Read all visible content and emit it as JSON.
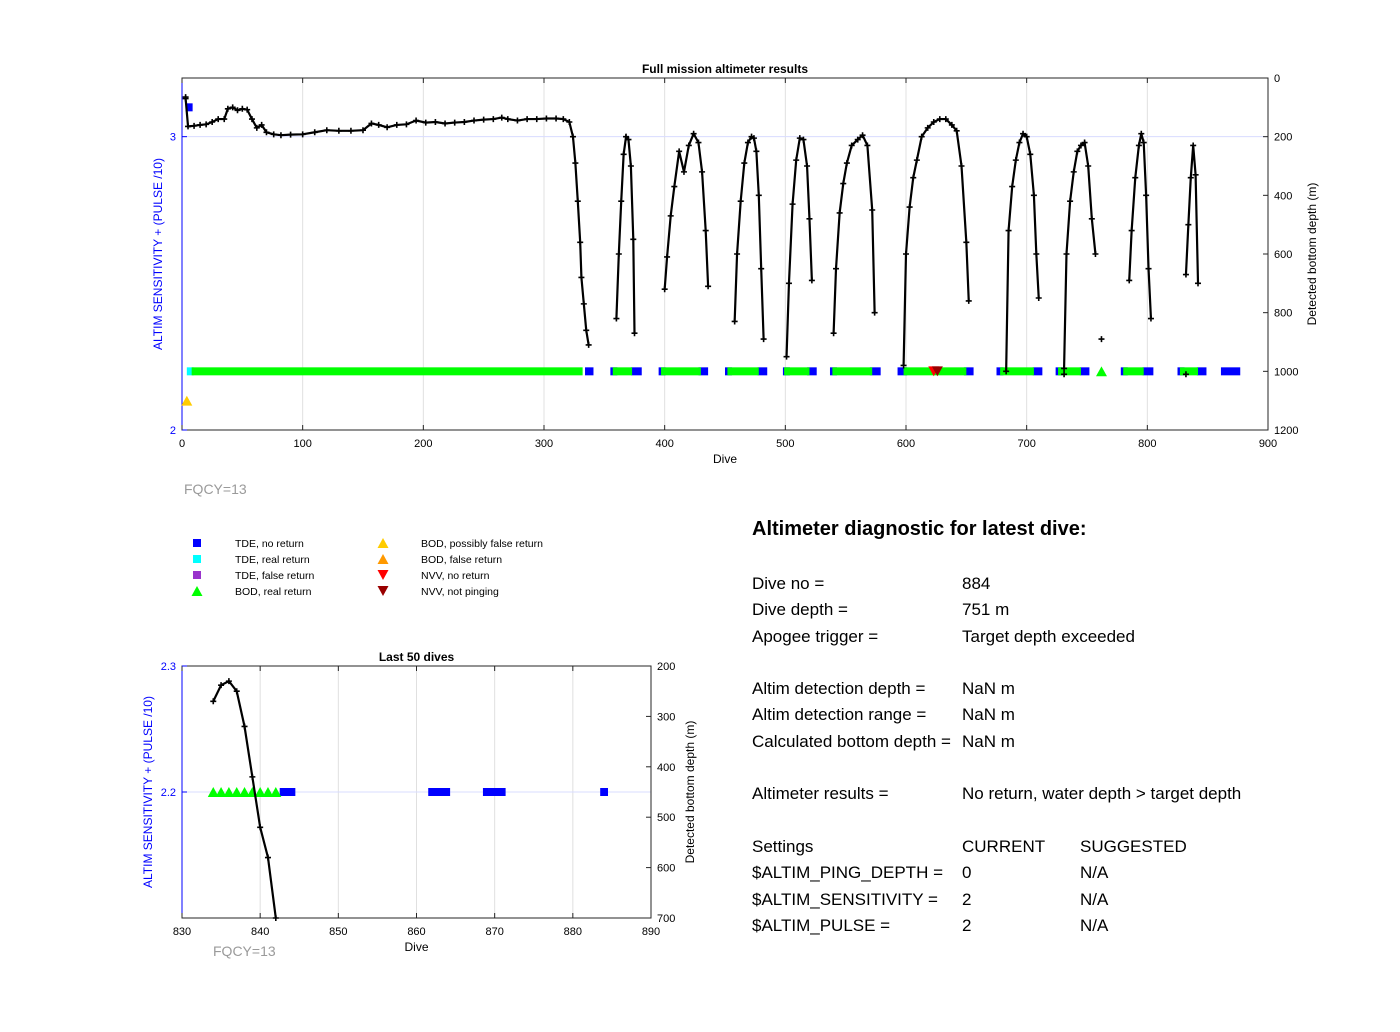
{
  "chart_data": [
    {
      "type": "scatter",
      "title": "Full mission altimeter results",
      "xlabel": "Dive",
      "ylabel": "ALTIM SENSITIVITY + (PULSE /10)",
      "ylabel_right": "Detected bottom depth (m)",
      "xlim": [
        0,
        900
      ],
      "ylim": [
        2,
        3.2
      ],
      "ylim_right": [
        1200,
        0
      ],
      "xticks": [
        "0",
        "100",
        "200",
        "300",
        "400",
        "500",
        "600",
        "700",
        "800",
        "900"
      ],
      "yticks": [
        "2",
        "3"
      ],
      "yticks_right": [
        "0",
        "200",
        "400",
        "600",
        "800",
        "1000",
        "1200"
      ],
      "grid": true,
      "fqcy_label": "FQCY=13",
      "segments": [
        {
          "series": "TDE, no return",
          "x0": 3,
          "x1": 8,
          "y": 3.1
        },
        {
          "series": "TDE, no return",
          "x0": 334,
          "x1": 341,
          "y": 2.2
        },
        {
          "series": "TDE, no return",
          "x0": 355,
          "x1": 358,
          "y": 2.2
        },
        {
          "series": "TDE, no return",
          "x0": 372,
          "x1": 381,
          "y": 2.2
        },
        {
          "series": "TDE, no return",
          "x0": 395,
          "x1": 398,
          "y": 2.2
        },
        {
          "series": "TDE, no return",
          "x0": 428,
          "x1": 436,
          "y": 2.2
        },
        {
          "series": "TDE, no return",
          "x0": 450,
          "x1": 453,
          "y": 2.2
        },
        {
          "series": "TDE, no return",
          "x0": 477,
          "x1": 485,
          "y": 2.2
        },
        {
          "series": "TDE, no return",
          "x0": 498,
          "x1": 501,
          "y": 2.2
        },
        {
          "series": "TDE, no return",
          "x0": 518,
          "x1": 526,
          "y": 2.2
        },
        {
          "series": "TDE, no return",
          "x0": 537,
          "x1": 540,
          "y": 2.2
        },
        {
          "series": "TDE, no return",
          "x0": 570,
          "x1": 579,
          "y": 2.2
        },
        {
          "series": "TDE, no return",
          "x0": 593,
          "x1": 601,
          "y": 2.2
        },
        {
          "series": "TDE, no return",
          "x0": 648,
          "x1": 656,
          "y": 2.2
        },
        {
          "series": "TDE, no return",
          "x0": 675,
          "x1": 680,
          "y": 2.2
        },
        {
          "series": "TDE, no return",
          "x0": 705,
          "x1": 713,
          "y": 2.2
        },
        {
          "series": "TDE, no return",
          "x0": 724,
          "x1": 727,
          "y": 2.2
        },
        {
          "series": "TDE, no return",
          "x0": 744,
          "x1": 752,
          "y": 2.2
        },
        {
          "series": "TDE, no return",
          "x0": 778,
          "x1": 781,
          "y": 2.2
        },
        {
          "series": "TDE, no return",
          "x0": 796,
          "x1": 805,
          "y": 2.2
        },
        {
          "series": "TDE, no return",
          "x0": 825,
          "x1": 828,
          "y": 2.2
        },
        {
          "series": "TDE, no return",
          "x0": 841,
          "x1": 849,
          "y": 2.2
        },
        {
          "series": "TDE, no return",
          "x0": 861,
          "x1": 877,
          "y": 2.2
        },
        {
          "series": "TDE, real return",
          "x0": 4,
          "x1": 8,
          "y": 2.2
        },
        {
          "series": "BOD, real return",
          "x0": 8,
          "x1": 332,
          "y": 2.2
        },
        {
          "series": "BOD, real return",
          "x0": 357,
          "x1": 373,
          "y": 2.2
        },
        {
          "series": "BOD, real return",
          "x0": 397,
          "x1": 430,
          "y": 2.2
        },
        {
          "series": "BOD, real return",
          "x0": 452,
          "x1": 478,
          "y": 2.2
        },
        {
          "series": "BOD, real return",
          "x0": 499,
          "x1": 520,
          "y": 2.2
        },
        {
          "series": "BOD, real return",
          "x0": 539,
          "x1": 572,
          "y": 2.2
        },
        {
          "series": "BOD, real return",
          "x0": 598,
          "x1": 650,
          "y": 2.2
        },
        {
          "series": "BOD, real return",
          "x0": 678,
          "x1": 706,
          "y": 2.2
        },
        {
          "series": "BOD, real return",
          "x0": 726,
          "x1": 745,
          "y": 2.2
        },
        {
          "series": "BOD, real return",
          "x0": 780,
          "x1": 797,
          "y": 2.2
        },
        {
          "series": "BOD, real return",
          "x0": 827,
          "x1": 842,
          "y": 2.2
        }
      ],
      "points": [
        {
          "series": "BOD, possibly false return",
          "x": 4,
          "y": 2.1
        },
        {
          "series": "BOD, real return",
          "x": 762,
          "y": 2.2
        },
        {
          "series": "NVV, no return",
          "x": 623,
          "y": 2.2
        },
        {
          "series": "NVV, not pinging",
          "x": 626,
          "y": 2.2
        }
      ],
      "depth_line": {
        "x": [
          3,
          5,
          10,
          15,
          20,
          25,
          30,
          35,
          38,
          42,
          46,
          50,
          54,
          58,
          62,
          66,
          70,
          76,
          82,
          90,
          100,
          110,
          120,
          130,
          140,
          150,
          157,
          163,
          170,
          178,
          186,
          194,
          202,
          210,
          218,
          226,
          234,
          242,
          250,
          258,
          265,
          270,
          278,
          286,
          294,
          302,
          310,
          316,
          321,
          324,
          326,
          328,
          330,
          331,
          333,
          335,
          337
        ],
        "y": [
          70,
          165,
          163,
          160,
          158,
          150,
          140,
          140,
          105,
          100,
          110,
          105,
          108,
          140,
          170,
          160,
          185,
          192,
          195,
          193,
          192,
          185,
          178,
          180,
          180,
          178,
          155,
          160,
          168,
          160,
          158,
          145,
          152,
          150,
          155,
          152,
          150,
          145,
          142,
          140,
          135,
          140,
          145,
          140,
          140,
          138,
          138,
          140,
          150,
          200,
          290,
          420,
          560,
          680,
          770,
          860,
          910
        ]
      },
      "depth_lines": [
        {
          "x": [
            360,
            362,
            364,
            366,
            368,
            370,
            372,
            374,
            375
          ],
          "y": [
            820,
            600,
            420,
            260,
            200,
            210,
            300,
            550,
            870
          ]
        },
        {
          "x": [
            400,
            402,
            405,
            408,
            412,
            416,
            420,
            424,
            428,
            431,
            434,
            436
          ],
          "y": [
            720,
            610,
            470,
            370,
            250,
            320,
            230,
            190,
            220,
            320,
            520,
            710
          ]
        },
        {
          "x": [
            458,
            460,
            463,
            466,
            469,
            472,
            474,
            476,
            478,
            480,
            482
          ],
          "y": [
            830,
            600,
            420,
            290,
            220,
            200,
            205,
            250,
            400,
            650,
            890
          ]
        },
        {
          "x": [
            501,
            503,
            506,
            509,
            512,
            515,
            518,
            520,
            522
          ],
          "y": [
            950,
            700,
            430,
            280,
            205,
            210,
            300,
            480,
            690
          ]
        },
        {
          "x": [
            540,
            542,
            545,
            548,
            551,
            555,
            560,
            564,
            568,
            572,
            574
          ],
          "y": [
            870,
            650,
            460,
            360,
            290,
            230,
            210,
            195,
            230,
            450,
            800
          ]
        },
        {
          "x": [
            598,
            600,
            603,
            606,
            609,
            613,
            618,
            623,
            628,
            633,
            638,
            642,
            646,
            650,
            652
          ],
          "y": [
            980,
            600,
            440,
            340,
            280,
            200,
            170,
            150,
            140,
            140,
            160,
            180,
            300,
            560,
            760
          ]
        },
        {
          "x": [
            683,
            685,
            688,
            691,
            694,
            697,
            700,
            703,
            706,
            708,
            710
          ],
          "y": [
            1000,
            520,
            370,
            280,
            220,
            190,
            200,
            260,
            400,
            600,
            750
          ]
        },
        {
          "x": [
            731,
            733,
            736,
            739,
            742,
            745,
            748,
            751,
            754,
            757
          ],
          "y": [
            990,
            600,
            420,
            320,
            250,
            230,
            220,
            300,
            480,
            600
          ]
        },
        {
          "x": [
            785,
            787,
            790,
            793,
            795,
            797,
            799,
            801,
            803
          ],
          "y": [
            690,
            520,
            340,
            230,
            190,
            220,
            400,
            650,
            820
          ]
        },
        {
          "x": [
            832,
            834,
            836,
            838,
            840,
            842
          ],
          "y": [
            670,
            500,
            340,
            230,
            330,
            700
          ]
        }
      ],
      "isolated_depth_points": [
        {
          "x": 3,
          "y": 65
        },
        {
          "x": 762,
          "y": 890
        },
        {
          "x": 832,
          "y": 1010
        },
        {
          "x": 731,
          "y": 1010
        }
      ]
    },
    {
      "type": "scatter",
      "title": "Last 50 dives",
      "xlabel": "Dive",
      "ylabel": "ALTIM SENSITIVITY + (PULSE /10)",
      "ylabel_right": "Detected bottom depth (m)",
      "xlim": [
        830,
        890
      ],
      "ylim": [
        2.1,
        2.3
      ],
      "ylim_right": [
        700,
        200
      ],
      "xticks": [
        "830",
        "840",
        "850",
        "860",
        "870",
        "880",
        "890"
      ],
      "yticks": [
        "2.2",
        "2.3"
      ],
      "yticks_right": [
        "200",
        "300",
        "400",
        "500",
        "600",
        "700"
      ],
      "grid": true,
      "fqcy_label": "FQCY=13",
      "segments": [
        {
          "series": "TDE, no return",
          "x0": 842.5,
          "x1": 844.5,
          "y": 2.2
        },
        {
          "series": "TDE, no return",
          "x0": 861.5,
          "x1": 864.3,
          "y": 2.2
        },
        {
          "series": "TDE, no return",
          "x0": 868.5,
          "x1": 871.4,
          "y": 2.2
        },
        {
          "series": "TDE, no return",
          "x0": 883.5,
          "x1": 884.5,
          "y": 2.2
        }
      ],
      "points": [
        {
          "series": "BOD, real return",
          "x": 834,
          "y": 2.2
        },
        {
          "series": "BOD, real return",
          "x": 835,
          "y": 2.2
        },
        {
          "series": "BOD, real return",
          "x": 836,
          "y": 2.2
        },
        {
          "series": "BOD, real return",
          "x": 837,
          "y": 2.2
        },
        {
          "series": "BOD, real return",
          "x": 838,
          "y": 2.2
        },
        {
          "series": "BOD, real return",
          "x": 839,
          "y": 2.2
        },
        {
          "series": "BOD, real return",
          "x": 840,
          "y": 2.2
        },
        {
          "series": "BOD, real return",
          "x": 841,
          "y": 2.2
        },
        {
          "series": "BOD, real return",
          "x": 842,
          "y": 2.2
        }
      ],
      "depth_line": {
        "x": [
          834,
          835,
          836,
          837,
          838,
          839,
          840,
          841,
          842
        ],
        "y": [
          270,
          238,
          230,
          250,
          320,
          420,
          520,
          580,
          700
        ]
      }
    }
  ],
  "legend": [
    {
      "label": "TDE, no return",
      "color": "#0000ff",
      "marker": "square"
    },
    {
      "label": "TDE, real return",
      "color": "#00ffff",
      "marker": "square"
    },
    {
      "label": "TDE, false return",
      "color": "#9933cc",
      "marker": "square"
    },
    {
      "label": "BOD, real return",
      "color": "#00ff00",
      "marker": "triangle-up"
    },
    {
      "label": "BOD, possibly false return",
      "color": "#ffcc00",
      "marker": "triangle-up"
    },
    {
      "label": "BOD, false return",
      "color": "#ff9900",
      "marker": "triangle-up"
    },
    {
      "label": "NVV, no return",
      "color": "#ff0000",
      "marker": "triangle-down"
    },
    {
      "label": "NVV, not pinging",
      "color": "#990000",
      "marker": "triangle-down"
    }
  ],
  "colors": {
    "axis_left": "#0000ff",
    "depth_line": "#000000",
    "grid": "#e0e0e0",
    "fqcy_text": "#9a9a9a"
  },
  "diagnostic": {
    "title": "Altimeter diagnostic for latest dive:",
    "dive_no_label": "Dive no =",
    "dive_no_value": "884",
    "dive_depth_label": "Dive depth =",
    "dive_depth_value": "751 m",
    "apogee_label": "Apogee trigger =",
    "apogee_value": "Target depth exceeded",
    "det_depth_label": "Altim detection depth =",
    "det_depth_value": "NaN m",
    "det_range_label": "Altim detection range =",
    "det_range_value": "NaN m",
    "calc_depth_label": "Calculated bottom depth =",
    "calc_depth_value": "NaN m",
    "results_label": "Altimeter results =",
    "results_value": "No return, water depth > target depth",
    "settings_label": "Settings",
    "current_label": "CURRENT",
    "suggested_label": "SUGGESTED",
    "ping_depth_label": "$ALTIM_PING_DEPTH =",
    "ping_depth_current": "0",
    "ping_depth_suggested": "N/A",
    "sensitivity_label": "$ALTIM_SENSITIVITY =",
    "sensitivity_current": "2",
    "sensitivity_suggested": "N/A",
    "pulse_label": "$ALTIM_PULSE =",
    "pulse_current": "2",
    "pulse_suggested": "N/A"
  }
}
